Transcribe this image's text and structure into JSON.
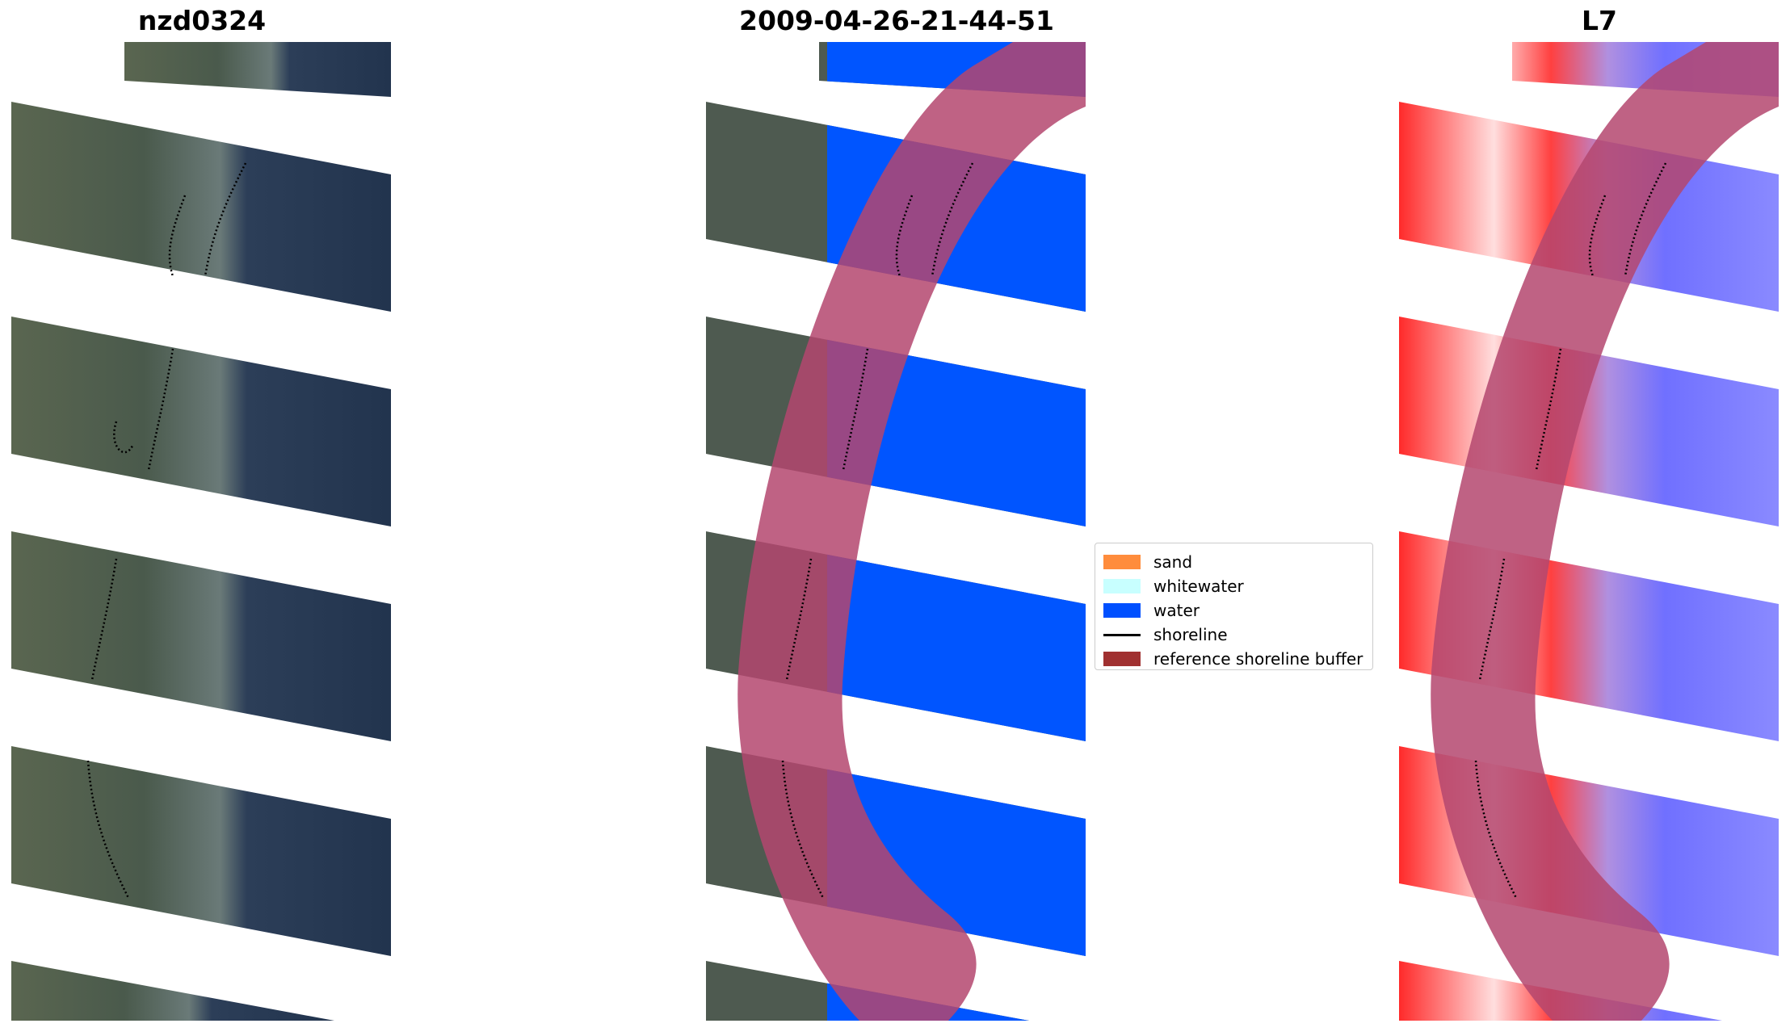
{
  "panels": [
    {
      "title": "nzd0324"
    },
    {
      "title": "2009-04-26-21-44-51"
    },
    {
      "title": "L7"
    }
  ],
  "legend": {
    "items": [
      {
        "label": "sand",
        "color": "#ff8c3c"
      },
      {
        "label": "whitewater",
        "color": "#c8ffff"
      },
      {
        "label": "water",
        "color": "#0050ff"
      },
      {
        "label": "shoreline",
        "color": "#000000"
      },
      {
        "label": "reference shoreline buffer",
        "color": "#a03030"
      }
    ]
  },
  "colors": {
    "land_rgb": "#4e5a50",
    "water_rgb": "#233650",
    "water_class": "#0055ff",
    "buffer_overlay": "#b4466e",
    "index_land": "#ff2a2a",
    "index_water": "#6e6eff"
  }
}
